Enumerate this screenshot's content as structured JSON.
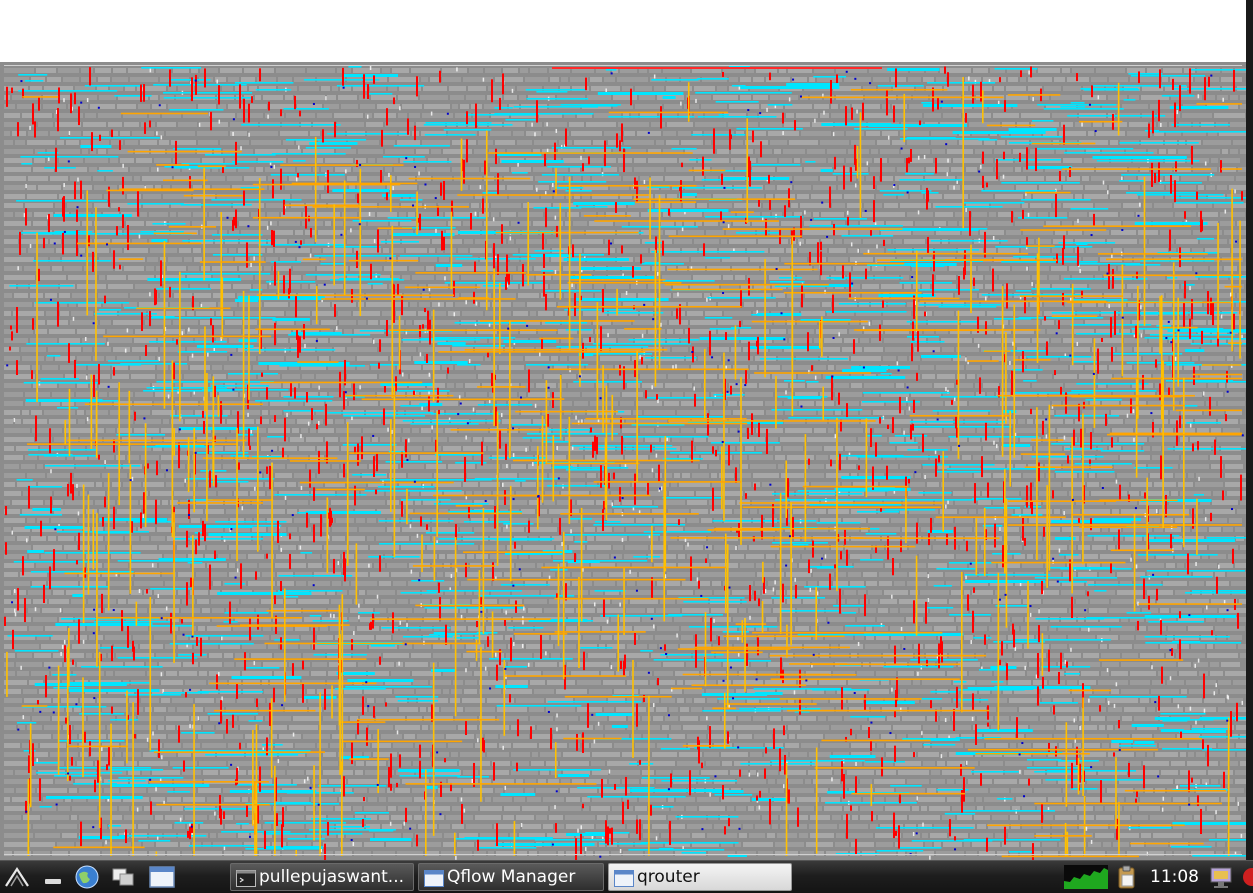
{
  "app": {
    "window_title": "qrouter",
    "description_hidden": false
  },
  "colors": {
    "background": "#8c8c8c",
    "cells": "#b4b4b4",
    "metal1": "#ff0000",
    "metal2": "#00e5ff",
    "metal3": "#ffc000",
    "metal4": "#ffa500",
    "via": "#0000cc",
    "pin": "#ffffff",
    "power": "#ff2a2a"
  },
  "taskbar": {
    "launcher_icons": [
      "lxde-menu-icon",
      "minimize-all-icon",
      "web-browser-icon",
      "desktop-switch-icon",
      "window-list-icon"
    ],
    "tasks": [
      {
        "label": "pullepujaswant...",
        "icon": "terminal-icon",
        "active": false
      },
      {
        "label": "Qflow Manager",
        "icon": "window-icon",
        "active": false
      },
      {
        "label": "qrouter",
        "icon": "window-icon",
        "active": true
      }
    ],
    "tray_icons": [
      "cpu-monitor-icon",
      "clipboard-icon",
      "network-icon"
    ],
    "clock": "11:08"
  }
}
